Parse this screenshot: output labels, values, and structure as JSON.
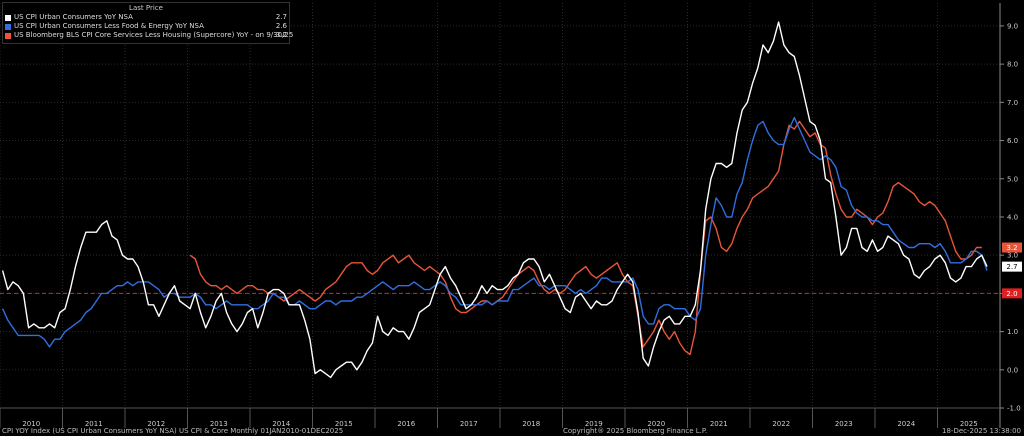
{
  "legend": {
    "header": "Last Price",
    "items": [
      {
        "label": "US CPI Urban Consumers YoY NSA",
        "value": "2.7",
        "color": "#ffffff"
      },
      {
        "label": "US CPI Urban Consumers Less Food & Energy YoY NSA",
        "value": "2.6",
        "color": "#2f6fe0"
      },
      {
        "label": "US Bloomberg BLS CPI Core Services Less Housing (Supercore) YoY -  on 9/30/25",
        "value": "3.2",
        "color": "#e8553a"
      }
    ]
  },
  "footer": {
    "left": "CPI YOY Index (US CPI Urban Consumers YoY NSA) US CPI & Core Monthly 01JAN2010-01DEC2025",
    "center": "Copyright® 2025 Bloomberg Finance L.P.",
    "right": "18-Dec-2025 13:38:00"
  },
  "chart_data": {
    "type": "line",
    "x_start": "2010-01",
    "x_end": "2025-12",
    "x_ticks": [
      "2010",
      "2011",
      "2012",
      "2013",
      "2014",
      "2015",
      "2016",
      "2017",
      "2018",
      "2019",
      "2020",
      "2021",
      "2022",
      "2023",
      "2024",
      "2025"
    ],
    "ylim": [
      -1,
      9.6
    ],
    "y_ticks": [
      "-1.0",
      "0.0",
      "1.0",
      "2.0",
      "3.0",
      "4.0",
      "5.0",
      "6.0",
      "7.0",
      "8.0",
      "9.0"
    ],
    "reference_line": {
      "value": 2.0,
      "label": "2.0",
      "color": "#e02020"
    },
    "last_value_tags": [
      {
        "value": 3.2,
        "label": "3.2",
        "color": "#e8553a"
      },
      {
        "value": 2.7,
        "label": "2.7",
        "color": "#ffffff"
      }
    ],
    "grid": true,
    "legend_position": "top-left",
    "series": [
      {
        "name": "US CPI Urban Consumers YoY NSA",
        "color": "#ffffff",
        "start": "2010-01",
        "values": [
          2.6,
          2.1,
          2.3,
          2.2,
          2.0,
          1.1,
          1.2,
          1.1,
          1.1,
          1.2,
          1.1,
          1.5,
          1.6,
          2.1,
          2.7,
          3.2,
          3.6,
          3.6,
          3.6,
          3.8,
          3.9,
          3.5,
          3.4,
          3.0,
          2.9,
          2.9,
          2.7,
          2.3,
          1.7,
          1.7,
          1.4,
          1.7,
          2.0,
          2.2,
          1.8,
          1.7,
          1.6,
          2.0,
          1.5,
          1.1,
          1.4,
          1.8,
          2.0,
          1.5,
          1.2,
          1.0,
          1.2,
          1.5,
          1.6,
          1.1,
          1.5,
          2.0,
          2.1,
          2.1,
          2.0,
          1.7,
          1.7,
          1.7,
          1.3,
          0.8,
          -0.1,
          0.0,
          -0.1,
          -0.2,
          0.0,
          0.1,
          0.2,
          0.2,
          0.0,
          0.2,
          0.5,
          0.7,
          1.4,
          1.0,
          0.9,
          1.1,
          1.0,
          1.0,
          0.8,
          1.1,
          1.5,
          1.6,
          1.7,
          2.1,
          2.5,
          2.7,
          2.4,
          2.2,
          1.9,
          1.6,
          1.7,
          1.9,
          2.2,
          2.0,
          2.2,
          2.1,
          2.1,
          2.2,
          2.4,
          2.5,
          2.8,
          2.9,
          2.9,
          2.7,
          2.3,
          2.5,
          2.2,
          1.9,
          1.6,
          1.5,
          1.9,
          2.0,
          1.8,
          1.6,
          1.8,
          1.7,
          1.7,
          1.8,
          2.1,
          2.3,
          2.5,
          2.3,
          1.5,
          0.3,
          0.1,
          0.6,
          1.0,
          1.3,
          1.4,
          1.2,
          1.2,
          1.4,
          1.4,
          1.7,
          2.6,
          4.2,
          5.0,
          5.4,
          5.4,
          5.3,
          5.4,
          6.2,
          6.8,
          7.0,
          7.5,
          7.9,
          8.5,
          8.3,
          8.6,
          9.1,
          8.5,
          8.3,
          8.2,
          7.7,
          7.1,
          6.5,
          6.4,
          6.0,
          5.0,
          4.9,
          4.0,
          3.0,
          3.2,
          3.7,
          3.7,
          3.2,
          3.1,
          3.4,
          3.1,
          3.2,
          3.5,
          3.4,
          3.3,
          3.0,
          2.9,
          2.5,
          2.4,
          2.6,
          2.7,
          2.9,
          3.0,
          2.8,
          2.4,
          2.3,
          2.4,
          2.7,
          2.7,
          2.9,
          3.0,
          2.7
        ]
      },
      {
        "name": "US CPI Urban Consumers Less Food & Energy YoY NSA",
        "color": "#2f6fe0",
        "start": "2010-01",
        "values": [
          1.6,
          1.3,
          1.1,
          0.9,
          0.9,
          0.9,
          0.9,
          0.9,
          0.8,
          0.6,
          0.8,
          0.8,
          1.0,
          1.1,
          1.2,
          1.3,
          1.5,
          1.6,
          1.8,
          2.0,
          2.0,
          2.1,
          2.2,
          2.2,
          2.3,
          2.2,
          2.3,
          2.3,
          2.3,
          2.2,
          2.1,
          1.9,
          2.0,
          2.0,
          1.9,
          1.9,
          1.9,
          2.0,
          1.9,
          1.7,
          1.7,
          1.6,
          1.7,
          1.8,
          1.7,
          1.7,
          1.7,
          1.7,
          1.6,
          1.6,
          1.7,
          1.8,
          2.0,
          1.9,
          1.9,
          1.7,
          1.7,
          1.8,
          1.7,
          1.6,
          1.6,
          1.7,
          1.8,
          1.8,
          1.7,
          1.8,
          1.8,
          1.8,
          1.9,
          1.9,
          2.0,
          2.1,
          2.2,
          2.3,
          2.2,
          2.1,
          2.2,
          2.2,
          2.2,
          2.3,
          2.2,
          2.1,
          2.1,
          2.2,
          2.3,
          2.2,
          2.0,
          1.9,
          1.7,
          1.7,
          1.7,
          1.7,
          1.7,
          1.8,
          1.7,
          1.8,
          1.8,
          1.8,
          2.1,
          2.1,
          2.2,
          2.3,
          2.4,
          2.2,
          2.2,
          2.1,
          2.2,
          2.2,
          2.2,
          2.1,
          2.0,
          2.1,
          2.0,
          2.1,
          2.2,
          2.4,
          2.4,
          2.3,
          2.3,
          2.3,
          2.3,
          2.4,
          2.1,
          1.4,
          1.2,
          1.2,
          1.6,
          1.7,
          1.7,
          1.6,
          1.6,
          1.6,
          1.4,
          1.3,
          1.6,
          3.0,
          3.8,
          4.5,
          4.3,
          4.0,
          4.0,
          4.6,
          4.9,
          5.5,
          6.0,
          6.4,
          6.5,
          6.2,
          6.0,
          5.9,
          5.9,
          6.3,
          6.6,
          6.3,
          6.0,
          5.7,
          5.6,
          5.5,
          5.6,
          5.5,
          5.3,
          4.8,
          4.7,
          4.3,
          4.1,
          4.0,
          4.0,
          3.9,
          3.9,
          3.8,
          3.8,
          3.6,
          3.4,
          3.3,
          3.2,
          3.2,
          3.3,
          3.3,
          3.3,
          3.2,
          3.3,
          3.1,
          2.8,
          2.8,
          2.8,
          2.9,
          3.1,
          3.1,
          3.0,
          2.6
        ]
      },
      {
        "name": "US Bloomberg BLS CPI Core Services Less Housing (Supercore) YoY -  on 9/30/25",
        "color": "#e8553a",
        "start": "2013-01",
        "values": [
          3.0,
          2.9,
          2.5,
          2.3,
          2.2,
          2.2,
          2.1,
          2.2,
          2.1,
          2.0,
          2.1,
          2.2,
          2.2,
          2.1,
          2.1,
          2.0,
          2.0,
          1.9,
          1.8,
          1.9,
          2.0,
          2.1,
          2.0,
          1.9,
          1.8,
          1.9,
          2.1,
          2.2,
          2.3,
          2.5,
          2.7,
          2.8,
          2.8,
          2.8,
          2.6,
          2.5,
          2.6,
          2.8,
          2.9,
          3.0,
          2.8,
          2.9,
          3.0,
          2.8,
          2.7,
          2.6,
          2.7,
          2.6,
          2.5,
          2.3,
          1.9,
          1.6,
          1.5,
          1.5,
          1.6,
          1.7,
          1.8,
          1.8,
          1.7,
          1.8,
          1.9,
          2.1,
          2.3,
          2.5,
          2.6,
          2.7,
          2.6,
          2.3,
          2.1,
          2.0,
          2.1,
          2.0,
          2.1,
          2.3,
          2.5,
          2.6,
          2.7,
          2.5,
          2.4,
          2.5,
          2.6,
          2.7,
          2.8,
          2.5,
          2.3,
          2.2,
          1.4,
          0.6,
          0.8,
          1.0,
          1.3,
          1.0,
          0.8,
          1.0,
          0.7,
          0.5,
          0.4,
          1.0,
          2.6,
          3.9,
          4.0,
          3.7,
          3.2,
          3.1,
          3.3,
          3.7,
          4.0,
          4.2,
          4.5,
          4.6,
          4.7,
          4.8,
          5.0,
          5.2,
          5.9,
          6.4,
          6.3,
          6.5,
          6.3,
          6.1,
          6.2,
          5.9,
          5.8,
          5.1,
          4.6,
          4.2,
          4.0,
          4.0,
          4.2,
          4.1,
          4.0,
          3.8,
          4.0,
          4.1,
          4.4,
          4.8,
          4.9,
          4.8,
          4.7,
          4.6,
          4.4,
          4.3,
          4.4,
          4.3,
          4.1,
          3.9,
          3.5,
          3.1,
          2.9,
          2.9,
          3.0,
          3.2,
          3.2
        ]
      }
    ]
  }
}
